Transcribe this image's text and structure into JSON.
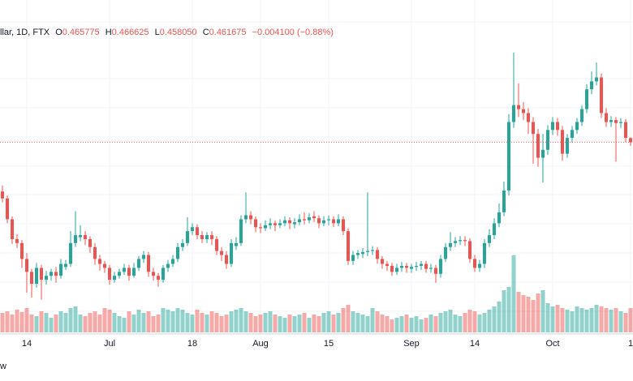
{
  "chart_data": {
    "type": "candlestick",
    "header": {
      "symbol": "llar, 1D, FTX",
      "open_label": "O",
      "open": "0.465775",
      "high_label": "H",
      "high": "0.466625",
      "low_label": "L",
      "low": "0.458050",
      "close_label": "C",
      "close": "0.461675",
      "change": "−0.004100 (−0.88%)"
    },
    "footer": "w",
    "up_color": "#26a69a",
    "down_color": "#ef5350",
    "ylim": [
      0.27,
      0.605
    ],
    "volume_lim": [
      0,
      100
    ],
    "categories": [
      null,
      null,
      null,
      null,
      null,
      "14",
      null,
      null,
      null,
      null,
      null,
      null,
      null,
      null,
      null,
      null,
      null,
      null,
      null,
      null,
      null,
      null,
      "Jul",
      null,
      null,
      null,
      null,
      null,
      null,
      null,
      null,
      null,
      null,
      null,
      null,
      null,
      null,
      null,
      null,
      "18",
      null,
      null,
      null,
      null,
      null,
      null,
      null,
      null,
      null,
      null,
      null,
      null,
      null,
      "Aug",
      null,
      null,
      null,
      null,
      null,
      null,
      null,
      null,
      null,
      null,
      null,
      null,
      null,
      "15",
      null,
      null,
      null,
      null,
      null,
      null,
      null,
      null,
      null,
      null,
      null,
      null,
      null,
      null,
      null,
      null,
      "Sep",
      null,
      null,
      null,
      null,
      null,
      null,
      null,
      null,
      null,
      null,
      null,
      null,
      "14",
      null,
      null,
      null,
      null,
      null,
      null,
      null,
      null,
      null,
      null,
      null,
      null,
      null,
      null,
      null,
      "Oct",
      null,
      null,
      null,
      null,
      null,
      null,
      null,
      null,
      null,
      null,
      null,
      null,
      null,
      null,
      null,
      "1"
    ],
    "ohlc": [
      [
        0.412,
        0.418,
        0.401,
        0.405
      ],
      [
        0.405,
        0.408,
        0.38,
        0.384
      ],
      [
        0.384,
        0.387,
        0.359,
        0.364
      ],
      [
        0.364,
        0.369,
        0.355,
        0.36
      ],
      [
        0.36,
        0.363,
        0.335,
        0.344
      ],
      [
        0.344,
        0.35,
        0.31,
        0.331
      ],
      [
        0.331,
        0.334,
        0.305,
        0.319
      ],
      [
        0.319,
        0.34,
        0.315,
        0.335
      ],
      [
        0.335,
        0.338,
        0.303,
        0.323
      ],
      [
        0.323,
        0.332,
        0.318,
        0.327
      ],
      [
        0.327,
        0.334,
        0.322,
        0.331
      ],
      [
        0.331,
        0.336,
        0.32,
        0.327
      ],
      [
        0.327,
        0.344,
        0.324,
        0.339
      ],
      [
        0.336,
        0.343,
        0.333,
        0.339
      ],
      [
        0.339,
        0.372,
        0.336,
        0.36
      ],
      [
        0.36,
        0.392,
        0.356,
        0.368
      ],
      [
        0.366,
        0.378,
        0.362,
        0.368
      ],
      [
        0.368,
        0.372,
        0.358,
        0.364
      ],
      [
        0.364,
        0.367,
        0.35,
        0.356
      ],
      [
        0.356,
        0.36,
        0.338,
        0.344
      ],
      [
        0.344,
        0.348,
        0.332,
        0.339
      ],
      [
        0.339,
        0.342,
        0.33,
        0.335
      ],
      [
        0.335,
        0.338,
        0.318,
        0.323
      ],
      [
        0.323,
        0.331,
        0.32,
        0.327
      ],
      [
        0.327,
        0.334,
        0.324,
        0.331
      ],
      [
        0.331,
        0.339,
        0.328,
        0.335
      ],
      [
        0.335,
        0.338,
        0.322,
        0.327
      ],
      [
        0.327,
        0.34,
        0.325,
        0.335
      ],
      [
        0.335,
        0.347,
        0.332,
        0.344
      ],
      [
        0.344,
        0.352,
        0.34,
        0.348
      ],
      [
        0.348,
        0.351,
        0.326,
        0.331
      ],
      [
        0.331,
        0.335,
        0.322,
        0.327
      ],
      [
        0.327,
        0.33,
        0.316,
        0.323
      ],
      [
        0.323,
        0.338,
        0.32,
        0.335
      ],
      [
        0.335,
        0.343,
        0.331,
        0.339
      ],
      [
        0.339,
        0.348,
        0.336,
        0.344
      ],
      [
        0.344,
        0.36,
        0.341,
        0.356
      ],
      [
        0.356,
        0.364,
        0.352,
        0.36
      ],
      [
        0.36,
        0.386,
        0.357,
        0.372
      ],
      [
        0.372,
        0.38,
        0.368,
        0.376
      ],
      [
        0.376,
        0.379,
        0.364,
        0.368
      ],
      [
        0.368,
        0.372,
        0.36,
        0.364
      ],
      [
        0.364,
        0.371,
        0.36,
        0.368
      ],
      [
        0.368,
        0.372,
        0.358,
        0.364
      ],
      [
        0.364,
        0.367,
        0.348,
        0.352
      ],
      [
        0.352,
        0.356,
        0.342,
        0.348
      ],
      [
        0.348,
        0.352,
        0.334,
        0.339
      ],
      [
        0.339,
        0.364,
        0.336,
        0.36
      ],
      [
        0.357,
        0.366,
        0.353,
        0.36
      ],
      [
        0.36,
        0.388,
        0.357,
        0.384
      ],
      [
        0.384,
        0.411,
        0.38,
        0.388
      ],
      [
        0.388,
        0.392,
        0.379,
        0.384
      ],
      [
        0.384,
        0.387,
        0.371,
        0.376
      ],
      [
        0.376,
        0.38,
        0.37,
        0.375
      ],
      [
        0.375,
        0.383,
        0.372,
        0.378
      ],
      [
        0.378,
        0.385,
        0.374,
        0.38
      ],
      [
        0.38,
        0.383,
        0.372,
        0.378
      ],
      [
        0.378,
        0.384,
        0.375,
        0.38
      ],
      [
        0.38,
        0.387,
        0.377,
        0.383
      ],
      [
        0.383,
        0.386,
        0.374,
        0.38
      ],
      [
        0.379,
        0.385,
        0.375,
        0.381
      ],
      [
        0.381,
        0.389,
        0.378,
        0.384
      ],
      [
        0.384,
        0.391,
        0.379,
        0.383
      ],
      [
        0.383,
        0.39,
        0.38,
        0.386
      ],
      [
        0.387,
        0.392,
        0.381,
        0.385
      ],
      [
        0.385,
        0.388,
        0.375,
        0.38
      ],
      [
        0.38,
        0.387,
        0.377,
        0.383
      ],
      [
        0.383,
        0.388,
        0.378,
        0.384
      ],
      [
        0.384,
        0.387,
        0.376,
        0.38
      ],
      [
        0.38,
        0.389,
        0.377,
        0.384
      ],
      [
        0.384,
        0.387,
        0.368,
        0.372
      ],
      [
        0.372,
        0.375,
        0.338,
        0.342
      ],
      [
        0.342,
        0.352,
        0.338,
        0.348
      ],
      [
        0.348,
        0.353,
        0.344,
        0.35
      ],
      [
        0.349,
        0.355,
        0.345,
        0.351
      ],
      [
        0.351,
        0.411,
        0.347,
        0.352
      ],
      [
        0.352,
        0.357,
        0.348,
        0.353
      ],
      [
        0.353,
        0.356,
        0.339,
        0.344
      ],
      [
        0.344,
        0.347,
        0.334,
        0.339
      ],
      [
        0.339,
        0.342,
        0.332,
        0.337
      ],
      [
        0.337,
        0.34,
        0.327,
        0.331
      ],
      [
        0.331,
        0.339,
        0.328,
        0.335
      ],
      [
        0.335,
        0.341,
        0.331,
        0.337
      ],
      [
        0.337,
        0.34,
        0.33,
        0.335
      ],
      [
        0.334,
        0.339,
        0.33,
        0.336
      ],
      [
        0.336,
        0.341,
        0.332,
        0.337
      ],
      [
        0.337,
        0.342,
        0.333,
        0.339
      ],
      [
        0.339,
        0.342,
        0.33,
        0.334
      ],
      [
        0.334,
        0.339,
        0.33,
        0.335
      ],
      [
        0.335,
        0.338,
        0.32,
        0.329
      ],
      [
        0.329,
        0.348,
        0.325,
        0.344
      ],
      [
        0.344,
        0.36,
        0.341,
        0.356
      ],
      [
        0.356,
        0.371,
        0.352,
        0.36
      ],
      [
        0.36,
        0.366,
        0.356,
        0.362
      ],
      [
        0.362,
        0.367,
        0.358,
        0.363
      ],
      [
        0.363,
        0.367,
        0.357,
        0.362
      ],
      [
        0.362,
        0.365,
        0.34,
        0.344
      ],
      [
        0.344,
        0.348,
        0.331,
        0.335
      ],
      [
        0.335,
        0.343,
        0.331,
        0.339
      ],
      [
        0.339,
        0.364,
        0.335,
        0.36
      ],
      [
        0.36,
        0.374,
        0.356,
        0.368
      ],
      [
        0.368,
        0.385,
        0.364,
        0.38
      ],
      [
        0.38,
        0.4,
        0.376,
        0.391
      ],
      [
        0.391,
        0.422,
        0.387,
        0.413
      ],
      [
        0.413,
        0.49,
        0.408,
        0.482
      ],
      [
        0.482,
        0.552,
        0.476,
        0.499
      ],
      [
        0.499,
        0.521,
        0.487,
        0.495
      ],
      [
        0.495,
        0.502,
        0.484,
        0.491
      ],
      [
        0.491,
        0.496,
        0.47,
        0.482
      ],
      [
        0.482,
        0.487,
        0.44,
        0.47
      ],
      [
        0.47,
        0.475,
        0.437,
        0.446
      ],
      [
        0.446,
        0.47,
        0.421,
        0.454
      ],
      [
        0.454,
        0.479,
        0.449,
        0.474
      ],
      [
        0.474,
        0.487,
        0.469,
        0.482
      ],
      [
        0.482,
        0.486,
        0.468,
        0.474
      ],
      [
        0.474,
        0.478,
        0.443,
        0.45
      ],
      [
        0.45,
        0.47,
        0.446,
        0.466
      ],
      [
        0.466,
        0.478,
        0.461,
        0.474
      ],
      [
        0.474,
        0.486,
        0.47,
        0.482
      ],
      [
        0.482,
        0.499,
        0.478,
        0.495
      ],
      [
        0.495,
        0.52,
        0.491,
        0.515
      ],
      [
        0.515,
        0.533,
        0.51,
        0.523
      ],
      [
        0.523,
        0.542,
        0.519,
        0.527
      ],
      [
        0.527,
        0.531,
        0.486,
        0.491
      ],
      [
        0.491,
        0.496,
        0.477,
        0.482
      ],
      [
        0.482,
        0.488,
        0.477,
        0.484
      ],
      [
        0.484,
        0.487,
        0.442,
        0.481
      ],
      [
        0.481,
        0.486,
        0.476,
        0.482
      ],
      [
        0.482,
        0.485,
        0.462,
        0.466
      ],
      [
        0.465775,
        0.466625,
        0.45805,
        0.461675
      ]
    ],
    "volume": [
      24,
      26,
      22,
      28,
      25,
      30,
      22,
      20,
      26,
      24,
      18,
      22,
      26,
      24,
      30,
      32,
      22,
      20,
      24,
      26,
      22,
      30,
      28,
      24,
      20,
      18,
      26,
      22,
      28,
      24,
      26,
      20,
      22,
      30,
      28,
      26,
      30,
      28,
      24,
      22,
      28,
      24,
      22,
      26,
      24,
      20,
      22,
      26,
      28,
      30,
      26,
      24,
      20,
      22,
      24,
      26,
      22,
      20,
      18,
      22,
      20,
      22,
      24,
      18,
      22,
      20,
      24,
      26,
      22,
      24,
      30,
      34,
      26,
      24,
      22,
      20,
      30,
      26,
      22,
      20,
      16,
      18,
      20,
      22,
      18,
      20,
      16,
      18,
      22,
      20,
      24,
      26,
      28,
      22,
      20,
      24,
      28,
      26,
      22,
      24,
      28,
      32,
      38,
      52,
      56,
      95,
      50,
      46,
      44,
      40,
      48,
      52,
      36,
      32,
      34,
      30,
      28,
      26,
      32,
      30,
      28,
      30,
      34,
      32,
      30,
      28,
      30,
      26,
      24,
      30
    ]
  }
}
